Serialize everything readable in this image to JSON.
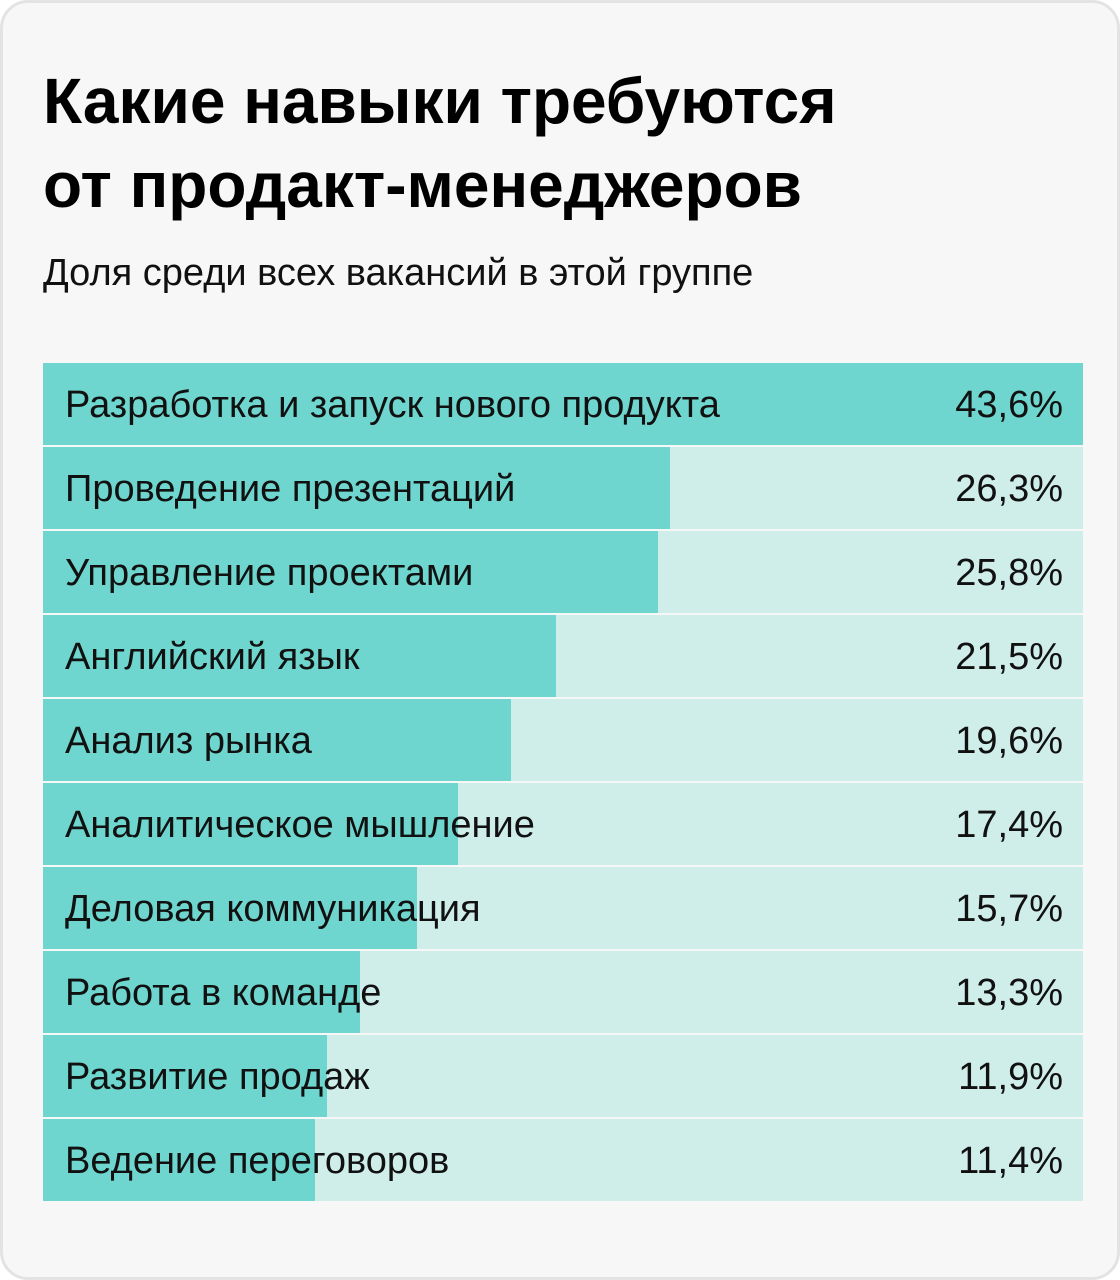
{
  "title_line1": "Какие навыки требуются",
  "title_line2": "от продакт-менеджеров",
  "subtitle": "Доля среди всех вакансий в этой группе",
  "colors": {
    "background": "#f7f7f7",
    "card_border": "#e3e3e3",
    "bar_fill": "#6ed6cf",
    "bar_track": "#cfeeea",
    "text": "#111111"
  },
  "chart_data": {
    "type": "bar",
    "orientation": "horizontal",
    "title": "Какие навыки требуются от продакт-менеджеров",
    "subtitle": "Доля среди всех вакансий в этой группе",
    "categories": [
      "Разработка и запуск нового продукта",
      "Проведение презентаций",
      "Управление проектами",
      "Английский язык",
      "Анализ рынка",
      "Аналитическое мышление",
      "Деловая коммуникация",
      "Работа в команде",
      "Развитие продаж",
      "Ведение переговоров"
    ],
    "values": [
      43.6,
      26.3,
      25.8,
      21.5,
      19.6,
      17.4,
      15.7,
      13.3,
      11.9,
      11.4
    ],
    "value_labels": [
      "43,6%",
      "26,3%",
      "25,8%",
      "21,5%",
      "19,6%",
      "17,4%",
      "15,7%",
      "13,3%",
      "11,9%",
      "11,4%"
    ],
    "unit": "%",
    "xlim": [
      0,
      43.6
    ],
    "grid": false,
    "legend": "none"
  }
}
